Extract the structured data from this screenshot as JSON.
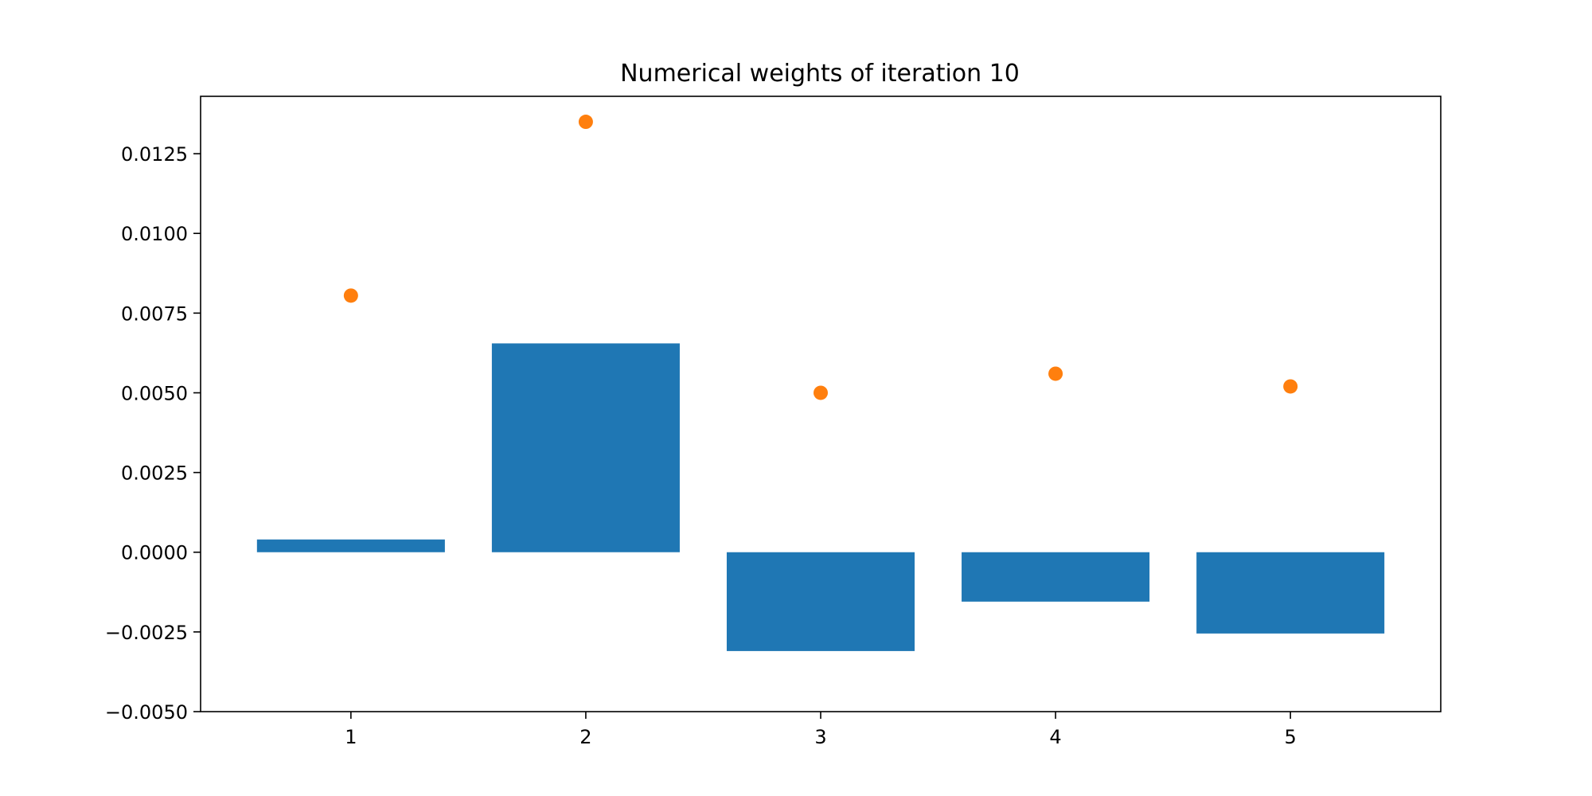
{
  "chart_data": {
    "type": "bar",
    "title": "Numerical weights of iteration 10",
    "xlabel": "",
    "ylabel": "",
    "categories": [
      1,
      2,
      3,
      4,
      5
    ],
    "x_tick_labels": [
      "1",
      "2",
      "3",
      "4",
      "5"
    ],
    "xlim": [
      0.36,
      5.64
    ],
    "ylim": [
      -0.005,
      0.0143
    ],
    "y_ticks": [
      -0.005,
      -0.0025,
      0.0,
      0.0025,
      0.005,
      0.0075,
      0.01,
      0.0125
    ],
    "y_tick_labels": [
      "−0.0050",
      "−0.0025",
      "0.0000",
      "0.0025",
      "0.0050",
      "0.0075",
      "0.0100",
      "0.0125"
    ],
    "grid": false,
    "series": [
      {
        "type": "bar",
        "color": "#1f77b4",
        "values": [
          0.0004,
          0.00655,
          -0.0031,
          -0.00155,
          -0.00255
        ]
      },
      {
        "type": "scatter",
        "color": "#ff7f0e",
        "values": [
          0.00805,
          0.0135,
          0.005,
          0.0056,
          0.0052
        ]
      }
    ]
  }
}
